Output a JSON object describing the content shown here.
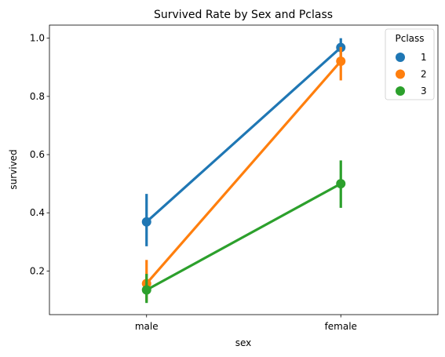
{
  "chart_data": {
    "type": "line",
    "title": "Survived Rate by Sex and Pclass",
    "xlabel": "sex",
    "ylabel": "survived",
    "categories": [
      "male",
      "female"
    ],
    "ylim": [
      0.05,
      1.045
    ],
    "yticks": [
      0.2,
      0.4,
      0.6,
      0.8,
      1.0
    ],
    "ytick_labels": [
      "0.2",
      "0.4",
      "0.6",
      "0.8",
      "1.0"
    ],
    "legend": {
      "title": "Pclass",
      "placement": "top-right"
    },
    "series": [
      {
        "name": "1",
        "color": "#1f77b4",
        "values": [
          0.369,
          0.968
        ],
        "ci_low": [
          0.285,
          0.93
        ],
        "ci_high": [
          0.465,
          1.0
        ]
      },
      {
        "name": "2",
        "color": "#ff7f0e",
        "values": [
          0.157,
          0.921
        ],
        "ci_low": [
          0.095,
          0.855
        ],
        "ci_high": [
          0.238,
          0.97
        ]
      },
      {
        "name": "3",
        "color": "#2ca02c",
        "values": [
          0.135,
          0.5
        ],
        "ci_low": [
          0.09,
          0.417
        ],
        "ci_high": [
          0.19,
          0.58
        ]
      }
    ]
  }
}
